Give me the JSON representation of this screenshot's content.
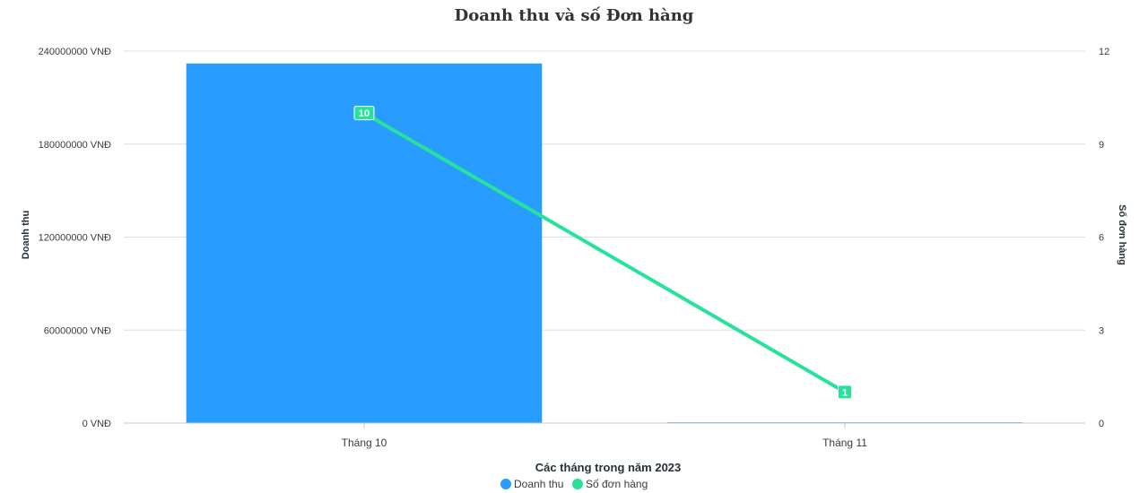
{
  "chart_data": {
    "type": "bar",
    "title": "Doanh thu và số Đơn hàng",
    "xlabel": "Các tháng trong năm 2023",
    "ylabel": "Doanh thu",
    "y2label": "Số đơn hàng",
    "categories": [
      "Tháng 10",
      "Tháng 11"
    ],
    "ylim": [
      0,
      240000000
    ],
    "y2lim": [
      0,
      12
    ],
    "y_ticks": [
      0,
      60000000,
      120000000,
      180000000,
      240000000
    ],
    "y_tick_labels": [
      "0 VNĐ",
      "60000000 VNĐ",
      "120000000 VNĐ",
      "180000000 VNĐ",
      "240000000 VNĐ"
    ],
    "y2_ticks": [
      0,
      3,
      6,
      9,
      12
    ],
    "y2_tick_labels": [
      "0",
      "3",
      "6",
      "9",
      "12"
    ],
    "grid": true,
    "legend_position": "bottom-center",
    "series": [
      {
        "name": "Doanh thu",
        "type": "bar",
        "axis": "left",
        "color": "#299cff",
        "values": [
          232000000,
          500000
        ]
      },
      {
        "name": "Số đơn hàng",
        "type": "line",
        "axis": "right",
        "color": "#26e29b",
        "values": [
          10,
          1
        ],
        "data_labels": [
          "10",
          "1"
        ]
      }
    ]
  }
}
